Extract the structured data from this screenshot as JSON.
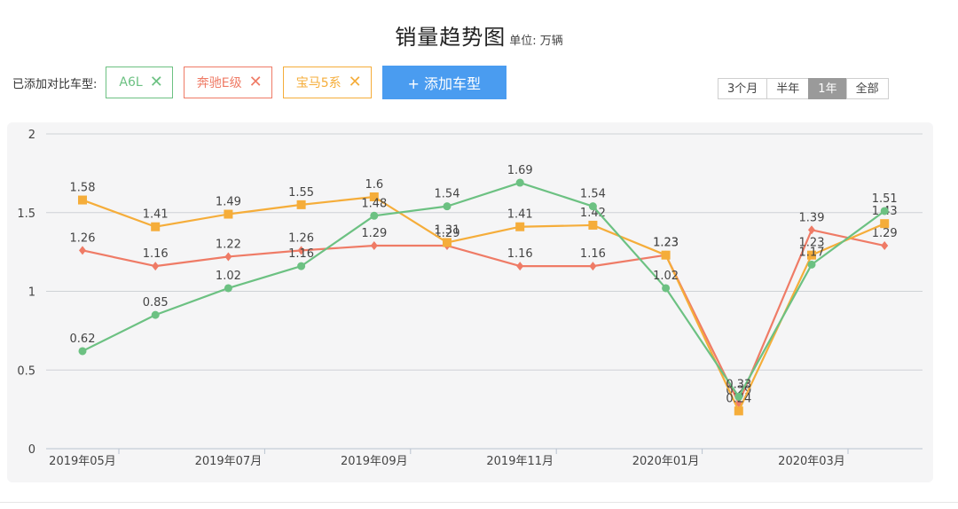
{
  "header": {
    "title": "销量趋势图",
    "unit": "单位: 万辆"
  },
  "toolbar": {
    "added_label": "已添加对比车型:",
    "chips": [
      {
        "label": "A6L",
        "color": "#6cc182"
      },
      {
        "label": "奔驰E级",
        "color": "#ef7b66"
      },
      {
        "label": "宝马5系",
        "color": "#f5ad3a"
      }
    ],
    "remove_symbol": "✕",
    "add_button": "+ 添加车型"
  },
  "range": {
    "options": [
      "3个月",
      "半年",
      "1年",
      "全部"
    ],
    "selected": "1年"
  },
  "chart_data": {
    "type": "line",
    "x": [
      "2019-05",
      "2019-06",
      "2019-07",
      "2019-08",
      "2019-09",
      "2019-10",
      "2019-11",
      "2019-12",
      "2020-01",
      "2020-02",
      "2020-03",
      "2020-04"
    ],
    "x_tick_labels": [
      {
        "index": 0,
        "label": "2019年05月"
      },
      {
        "index": 2,
        "label": "2019年07月"
      },
      {
        "index": 4,
        "label": "2019年09月"
      },
      {
        "index": 6,
        "label": "2019年11月"
      },
      {
        "index": 8,
        "label": "2020年01月"
      },
      {
        "index": 10,
        "label": "2020年03月"
      }
    ],
    "ylim": [
      0,
      2
    ],
    "y_ticks": [
      0,
      0.5,
      1,
      1.5,
      2
    ],
    "grid": true,
    "series": [
      {
        "name": "奔驰E级",
        "color": "#ef7b66",
        "marker": "diamond",
        "values": [
          1.26,
          1.16,
          1.22,
          1.26,
          1.29,
          1.29,
          1.16,
          1.16,
          1.23,
          0.29,
          1.39,
          1.29
        ]
      },
      {
        "name": "宝马5系",
        "color": "#f5ad3a",
        "marker": "square",
        "values": [
          1.58,
          1.41,
          1.49,
          1.55,
          1.6,
          1.31,
          1.41,
          1.42,
          1.23,
          0.24,
          1.23,
          1.43
        ]
      },
      {
        "name": "A6L",
        "color": "#6cc182",
        "marker": "circle",
        "values": [
          0.62,
          0.85,
          1.02,
          1.16,
          1.48,
          1.54,
          1.69,
          1.54,
          1.02,
          0.33,
          1.17,
          1.51
        ]
      }
    ]
  }
}
